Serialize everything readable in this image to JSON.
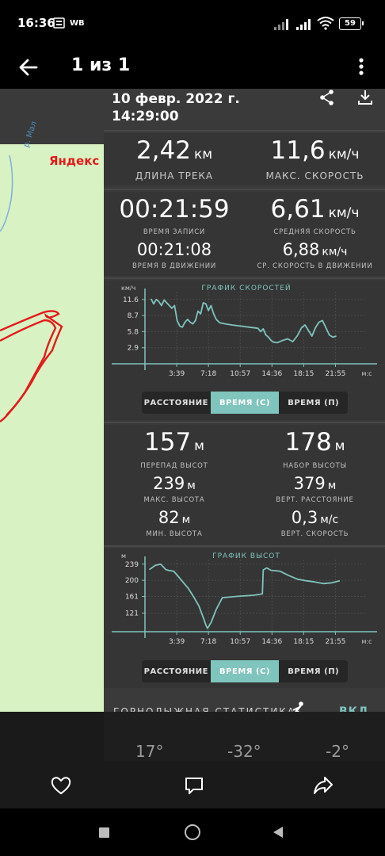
{
  "status_bar": {
    "time": "16:36",
    "carrier_badge": "WB",
    "battery": "59"
  },
  "toolbar": {
    "title": "1 из 1"
  },
  "map": {
    "provider": "Яндекс",
    "river_label": "р. Мал"
  },
  "track": {
    "date_line1": "10 февр. 2022 г.",
    "date_line2": "14:29:00"
  },
  "stats": {
    "distance": {
      "value": "2,42",
      "unit": "км",
      "label": "ДЛИНА ТРЕКА"
    },
    "max_speed": {
      "value": "11,6",
      "unit": "км/ч",
      "label": "МАКС. СКОРОСТЬ"
    },
    "record_time": {
      "value": "00:21:59",
      "label": "ВРЕМЯ ЗАПИСИ"
    },
    "avg_speed": {
      "value": "6,61",
      "unit": "км/ч",
      "label": "СРЕДНЯЯ СКОРОСТЬ"
    },
    "moving_time": {
      "value": "00:21:08",
      "label": "ВРЕМЯ В ДВИЖЕНИИ"
    },
    "avg_moving_speed": {
      "value": "6,88",
      "unit": "км/ч",
      "label": "СР. СКОРОСТЬ В ДВИЖЕНИИ"
    }
  },
  "toggle": {
    "distance": "РАССТОЯНИЕ",
    "time_s": "ВРЕМЯ (С)",
    "time_p": "ВРЕМЯ (П)",
    "selected": "ВРЕМЯ (С)"
  },
  "elevation": {
    "drop": {
      "value": "157",
      "unit": "м",
      "label": "ПЕРЕПАД ВЫСОТ"
    },
    "gain": {
      "value": "178",
      "unit": "м",
      "label": "НАБОР ВЫСОТЫ"
    },
    "max": {
      "value": "239",
      "unit": "м",
      "label": "МАКС. ВЫСОТА"
    },
    "vdist": {
      "value": "379",
      "unit": "м",
      "label": "ВЕРТ. РАССТОЯНИЕ"
    },
    "min": {
      "value": "82",
      "unit": "м",
      "label": "МИН. ВЫСОТА"
    },
    "vspeed": {
      "value": "0,3",
      "unit": "м/с",
      "label": "ВЕРТ. СКОРОСТЬ"
    }
  },
  "ski": {
    "label": "ГОРНОЛЫЖНАЯ СТАТИСТИКА",
    "action": "ВКЛ",
    "t1": "17°",
    "t2": "-32°",
    "t3": "-2°"
  },
  "chart_data": [
    {
      "type": "line",
      "title": "ГРАФИК СКОРОСТЕЙ",
      "ylabel": "км/ч",
      "xlabel": "м:с",
      "x_ticks": [
        "3:39",
        "7:18",
        "10:57",
        "14:36",
        "18:15",
        "21:55"
      ],
      "y_ticks": [
        11.6,
        8.7,
        5.8,
        2.9
      ],
      "xlim": [
        0,
        23.5
      ],
      "ylim": [
        0,
        13
      ],
      "color": "#7fc4bd",
      "series": [
        {
          "x": [
            0.7,
            1.0,
            1.3,
            1.6,
            1.9,
            2.2,
            2.5,
            2.8,
            3.1,
            3.4,
            3.7,
            4.0,
            4.3,
            4.6,
            4.9,
            5.2,
            5.5,
            5.8,
            6.1,
            6.4,
            6.7,
            7.0,
            7.3,
            7.6,
            7.9,
            8.2,
            8.6,
            9.2,
            10.0,
            11.0,
            12.0,
            13.0,
            13.3,
            13.6,
            13.9,
            14.2,
            14.5,
            14.8,
            15.2,
            15.8,
            16.4,
            17.0,
            17.5,
            18.0,
            18.4,
            18.8,
            19.2,
            19.6,
            20.0,
            20.4,
            20.8,
            21.2,
            21.6,
            22.0
          ],
          "y": [
            11.7,
            10.8,
            11.6,
            11.2,
            10.5,
            11.5,
            11.0,
            10.5,
            10.0,
            10.5,
            7.8,
            6.8,
            6.6,
            7.5,
            8.0,
            7.5,
            7.2,
            7.8,
            9.5,
            9.0,
            11.0,
            10.8,
            9.6,
            10.5,
            9.0,
            8.0,
            7.4,
            7.2,
            7.0,
            6.8,
            6.6,
            6.4,
            5.8,
            6.3,
            5.2,
            4.8,
            4.2,
            3.9,
            3.8,
            4.2,
            4.5,
            4.0,
            5.0,
            6.5,
            7.0,
            6.0,
            5.0,
            6.5,
            7.5,
            7.8,
            6.5,
            5.2,
            4.8,
            5.0
          ]
        }
      ]
    },
    {
      "type": "line",
      "title": "ГРАФИК ВЫСОТ",
      "ylabel": "м",
      "xlabel": "м:с",
      "x_ticks": [
        "3:39",
        "7:18",
        "10:57",
        "14:36",
        "18:15",
        "21:55"
      ],
      "y_ticks": [
        239,
        200,
        161,
        121
      ],
      "xlim": [
        0,
        23.5
      ],
      "ylim": [
        76,
        250
      ],
      "color": "#7fc4bd",
      "series": [
        {
          "x": [
            0.5,
            1.2,
            1.8,
            2.4,
            2.7,
            3.3,
            3.8,
            4.4,
            5.0,
            5.6,
            6.2,
            6.7,
            7.0,
            7.2,
            7.6,
            8.2,
            8.9,
            10.5,
            12.5,
            13.5,
            13.6,
            14.0,
            14.5,
            15.5,
            16.5,
            17.5,
            18.5,
            19.5,
            20.5,
            21.5,
            22.4
          ],
          "y": [
            226,
            236,
            239,
            226,
            224,
            222,
            210,
            195,
            180,
            160,
            138,
            110,
            92,
            84,
            98,
            130,
            158,
            161,
            164,
            167,
            225,
            230,
            224,
            222,
            212,
            203,
            199,
            196,
            192,
            194,
            199
          ]
        }
      ]
    }
  ]
}
